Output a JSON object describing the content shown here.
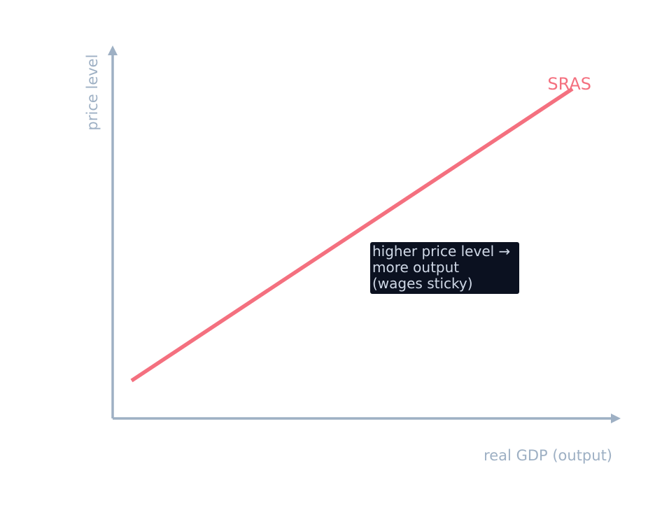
{
  "axes": {
    "y_label": "price level",
    "x_label": "real GDP (output)"
  },
  "curve": {
    "label": "SRAS"
  },
  "annotation": {
    "lines": [
      "higher price level →",
      "more output",
      "(wages sticky)"
    ]
  }
}
